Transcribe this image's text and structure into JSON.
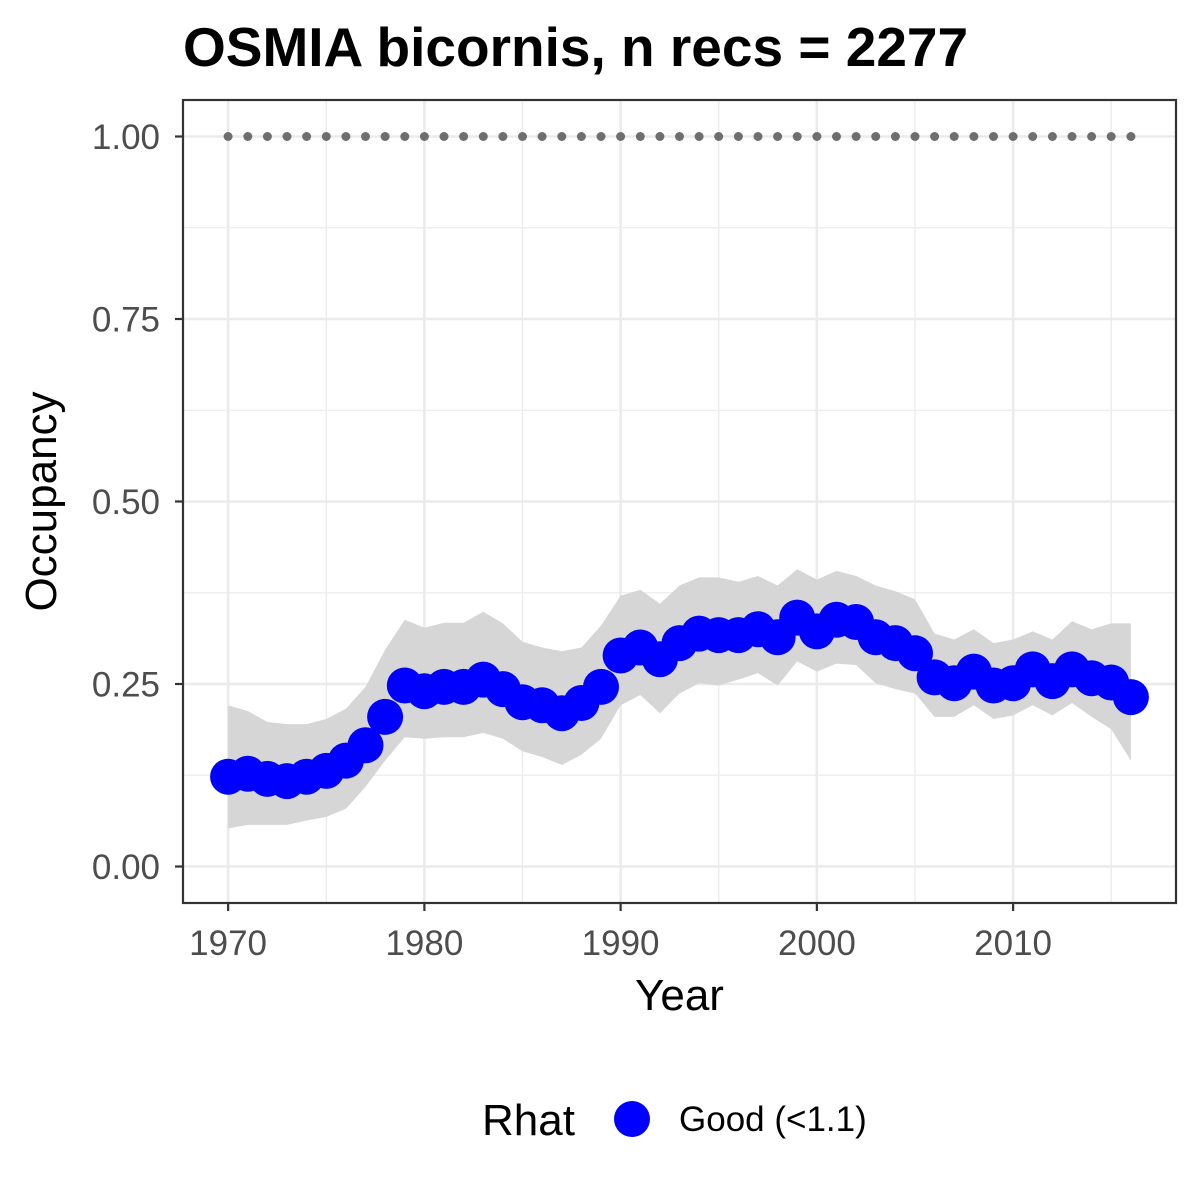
{
  "chart_data": {
    "type": "scatter",
    "title": "OSMIA bicornis, n recs = 2277",
    "xlabel": "Year",
    "ylabel": "Occupancy",
    "xlim": [
      1967.7,
      2018.3
    ],
    "ylim": [
      -0.05,
      1.05
    ],
    "x_ticks": [
      1970,
      1980,
      1990,
      2000,
      2010
    ],
    "x_tick_labels": [
      "1970",
      "1980",
      "1990",
      "2000",
      "2010"
    ],
    "y_ticks": [
      0,
      0.25,
      0.5,
      0.75,
      1
    ],
    "y_tick_labels": [
      "0.00",
      "0.25",
      "0.50",
      "0.75",
      "1.00"
    ],
    "grid": true,
    "legend": {
      "title": "Rhat",
      "position": "bottom"
    },
    "x": [
      1970,
      1971,
      1972,
      1973,
      1974,
      1975,
      1976,
      1977,
      1978,
      1979,
      1980,
      1981,
      1982,
      1983,
      1984,
      1985,
      1986,
      1987,
      1988,
      1989,
      1990,
      1991,
      1992,
      1993,
      1994,
      1995,
      1996,
      1997,
      1998,
      1999,
      2000,
      2001,
      2002,
      2003,
      2004,
      2005,
      2006,
      2007,
      2008,
      2009,
      2010,
      2011,
      2012,
      2013,
      2014,
      2015,
      2016
    ],
    "series": [
      {
        "name": "Good (<1.1)",
        "color": "#0000FF",
        "values": [
          0.123,
          0.127,
          0.12,
          0.117,
          0.123,
          0.131,
          0.145,
          0.166,
          0.205,
          0.248,
          0.24,
          0.246,
          0.246,
          0.256,
          0.243,
          0.225,
          0.221,
          0.21,
          0.224,
          0.246,
          0.289,
          0.3,
          0.284,
          0.306,
          0.319,
          0.317,
          0.317,
          0.325,
          0.314,
          0.341,
          0.322,
          0.338,
          0.335,
          0.314,
          0.306,
          0.292,
          0.259,
          0.251,
          0.267,
          0.248,
          0.251,
          0.27,
          0.254,
          0.27,
          0.258,
          0.252,
          0.232
        ]
      }
    ],
    "ribbon": {
      "color": "#D6D6D6",
      "upper": [
        0.221,
        0.213,
        0.198,
        0.195,
        0.195,
        0.202,
        0.216,
        0.246,
        0.297,
        0.338,
        0.327,
        0.334,
        0.334,
        0.349,
        0.333,
        0.308,
        0.3,
        0.295,
        0.3,
        0.33,
        0.371,
        0.379,
        0.36,
        0.385,
        0.396,
        0.396,
        0.39,
        0.398,
        0.385,
        0.407,
        0.393,
        0.405,
        0.398,
        0.385,
        0.377,
        0.366,
        0.319,
        0.311,
        0.325,
        0.306,
        0.311,
        0.322,
        0.311,
        0.336,
        0.325,
        0.333,
        0.333
      ],
      "lower": [
        0.052,
        0.057,
        0.057,
        0.057,
        0.063,
        0.068,
        0.079,
        0.109,
        0.145,
        0.177,
        0.175,
        0.177,
        0.177,
        0.183,
        0.175,
        0.158,
        0.15,
        0.139,
        0.153,
        0.175,
        0.221,
        0.235,
        0.21,
        0.237,
        0.251,
        0.248,
        0.256,
        0.265,
        0.248,
        0.281,
        0.267,
        0.278,
        0.276,
        0.251,
        0.243,
        0.237,
        0.205,
        0.205,
        0.221,
        0.202,
        0.207,
        0.221,
        0.207,
        0.224,
        0.205,
        0.188,
        0.145
      ]
    },
    "reference": {
      "color": "#6E6E6E",
      "value": 1
    }
  }
}
